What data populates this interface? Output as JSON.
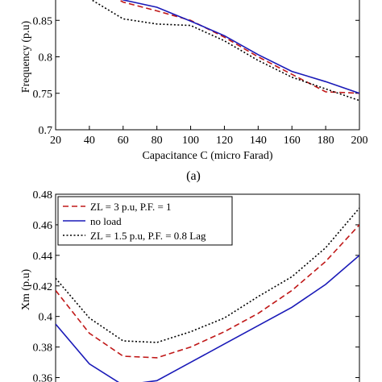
{
  "chart_data": [
    {
      "type": "line",
      "caption": "(a)",
      "xlabel": "Capacitance C (micro Farad)",
      "ylabel": "Frequency (p.u)",
      "xlim": [
        20,
        200
      ],
      "ylim": [
        0.7,
        0.9
      ],
      "xticks": [
        "20",
        "40",
        "60",
        "80",
        "100",
        "120",
        "140",
        "160",
        "180",
        "200"
      ],
      "yticks": [
        "0.7",
        "0.75",
        "0.8",
        "0.85"
      ],
      "x": [
        40,
        60,
        80,
        100,
        120,
        140,
        160,
        180,
        200
      ],
      "series": [
        {
          "values": [
            0.9,
            0.875,
            0.863,
            0.85,
            0.827,
            0.8,
            0.776,
            0.752,
            0.75
          ],
          "color": "#c01818",
          "style": "dashed"
        },
        {
          "values": [
            0.9,
            0.878,
            0.868,
            0.849,
            0.829,
            0.803,
            0.78,
            0.766,
            0.75
          ],
          "color": "#1a1ab8",
          "style": "solid"
        },
        {
          "values": [
            0.88,
            0.852,
            0.845,
            0.843,
            0.822,
            0.795,
            0.772,
            0.756,
            0.74
          ],
          "color": "#000000",
          "style": "dotted"
        }
      ],
      "grid": false
    },
    {
      "type": "line",
      "ylabel": "Xm (p.u)",
      "xlim": [
        20,
        200
      ],
      "ylim": [
        0.355,
        0.48
      ],
      "yticks": [
        "0.36",
        "0.38",
        "0.4",
        "0.42",
        "0.44",
        "0.46",
        "0.48"
      ],
      "x": [
        20,
        40,
        60,
        80,
        100,
        120,
        140,
        160,
        180,
        200
      ],
      "series": [
        {
          "name": "ZL = 3 p.u, P.F. = 1",
          "values": [
            0.417,
            0.389,
            0.374,
            0.373,
            0.38,
            0.39,
            0.402,
            0.417,
            0.436,
            0.46
          ],
          "color": "#c01818",
          "style": "dashed"
        },
        {
          "name": "no load",
          "values": [
            0.395,
            0.369,
            0.355,
            0.358,
            0.37,
            0.382,
            0.394,
            0.406,
            0.421,
            0.44
          ],
          "color": "#1a1ab8",
          "style": "solid"
        },
        {
          "name": "ZL = 1.5 p.u, P.F. = 0.8 Lag",
          "values": [
            0.425,
            0.399,
            0.384,
            0.383,
            0.39,
            0.399,
            0.413,
            0.426,
            0.445,
            0.471
          ],
          "color": "#000000",
          "style": "dotted"
        }
      ],
      "legend": "top-left",
      "grid": false
    }
  ]
}
